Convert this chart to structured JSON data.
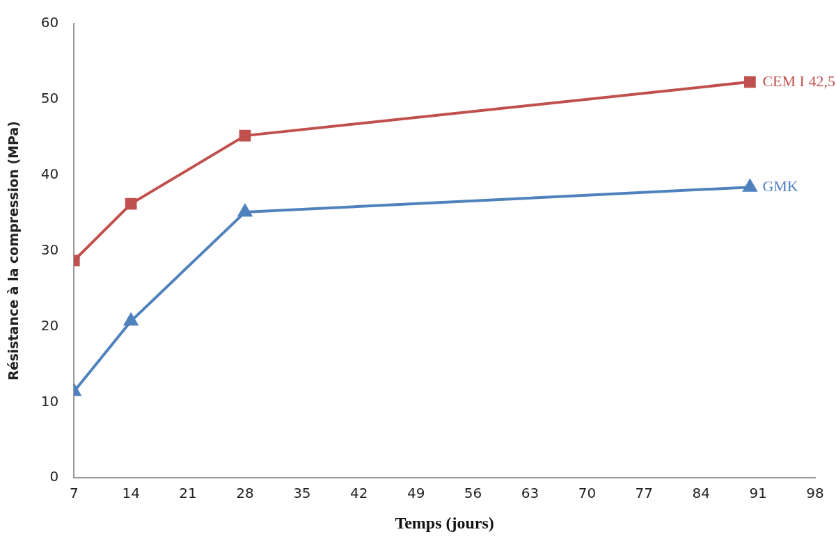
{
  "chart_data": {
    "type": "line",
    "xlabel": "Temps (jours)",
    "ylabel": "Résistance à la compression (MPa)",
    "x": [
      7,
      14,
      28,
      90
    ],
    "series": [
      {
        "name": "CEM I 42,5",
        "color": "#c0504d",
        "marker": "square",
        "values": [
          28.7,
          36.2,
          45.2,
          52.3
        ]
      },
      {
        "name": "GMK",
        "color": "#4f81bd",
        "marker": "triangle",
        "values": [
          11.4,
          20.7,
          35.1,
          38.4
        ]
      }
    ],
    "xlim": [
      7,
      98
    ],
    "xticks": [
      7,
      14,
      21,
      28,
      35,
      42,
      49,
      56,
      63,
      70,
      77,
      84,
      91,
      98
    ],
    "ylim": [
      0,
      60
    ],
    "yticks": [
      0,
      10,
      20,
      30,
      40,
      50,
      60
    ],
    "grid": false,
    "legend": false,
    "line_style": "solid"
  }
}
